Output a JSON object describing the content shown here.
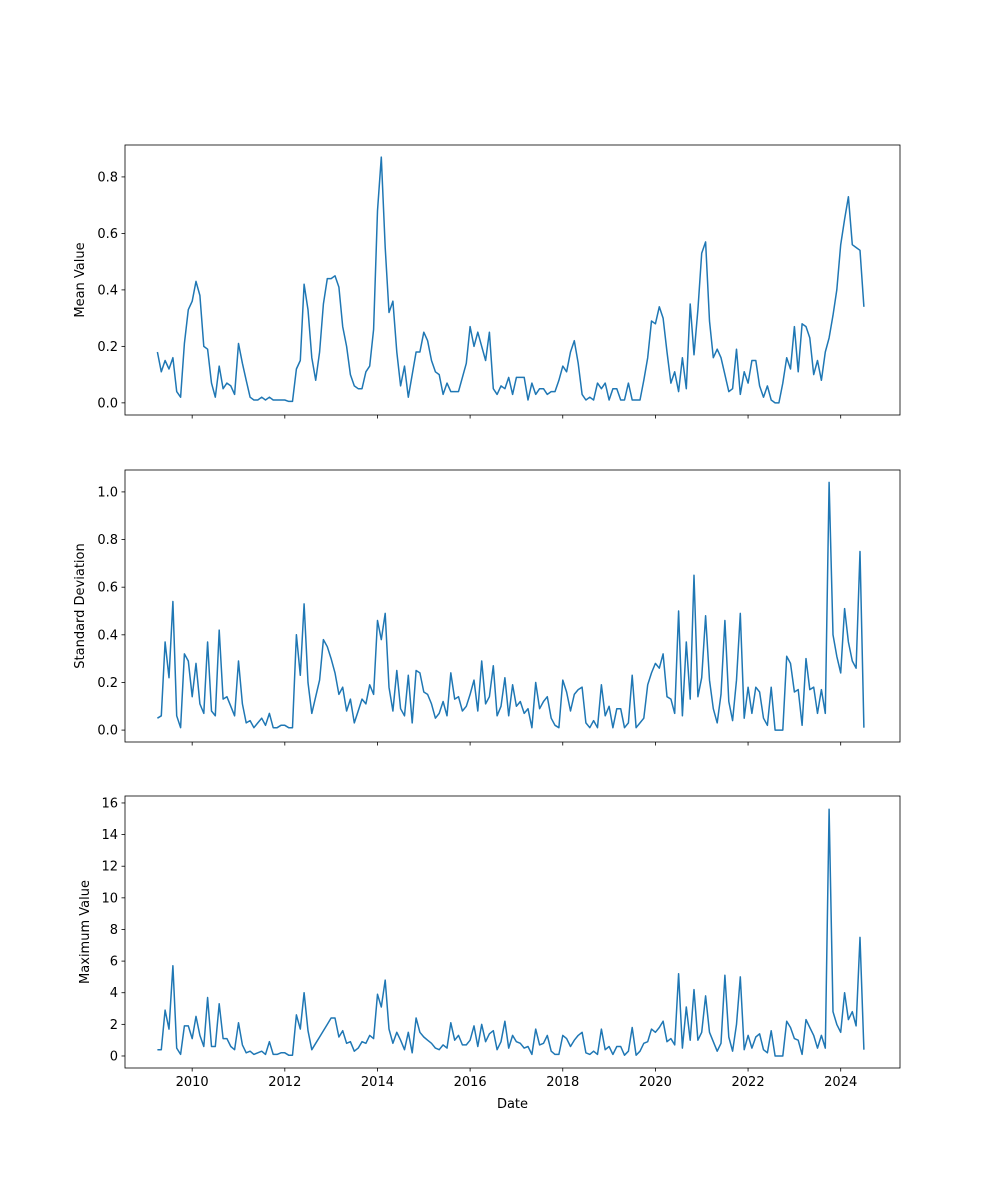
{
  "chart_data": {
    "type": "line",
    "shared_xlabel": "Date",
    "x_start": {
      "year": 2009,
      "month": 4
    },
    "x_frequency": "monthly",
    "xlim": [
      2008.55,
      2025.28
    ],
    "x_ticks": [
      2010,
      2012,
      2014,
      2016,
      2018,
      2020,
      2022,
      2024
    ],
    "line_color": "#1f77b4",
    "panels": [
      {
        "ylabel": "Mean Value",
        "ylim": [
          -0.043,
          0.913
        ],
        "y_ticks": [
          "0.0",
          "0.2",
          "0.4",
          "0.6",
          "0.8"
        ],
        "values": [
          0.18,
          0.11,
          0.15,
          0.12,
          0.16,
          0.04,
          0.02,
          0.21,
          0.33,
          0.36,
          0.43,
          0.38,
          0.2,
          0.19,
          0.07,
          0.02,
          0.13,
          0.05,
          0.07,
          0.06,
          0.03,
          0.21,
          0.14,
          0.08,
          0.02,
          0.01,
          0.01,
          0.02,
          0.01,
          0.02,
          0.01,
          0.01,
          0.01,
          0.01,
          0.005,
          0.005,
          0.12,
          0.15,
          0.42,
          0.33,
          0.16,
          0.08,
          0.18,
          0.35,
          0.44,
          0.44,
          0.45,
          0.41,
          0.27,
          0.2,
          0.1,
          0.06,
          0.05,
          0.05,
          0.11,
          0.13,
          0.26,
          0.68,
          0.87,
          0.55,
          0.32,
          0.36,
          0.18,
          0.06,
          0.13,
          0.02,
          0.1,
          0.18,
          0.18,
          0.25,
          0.22,
          0.15,
          0.11,
          0.1,
          0.03,
          0.07,
          0.04,
          0.04,
          0.04,
          0.09,
          0.14,
          0.27,
          0.2,
          0.25,
          0.2,
          0.15,
          0.25,
          0.05,
          0.03,
          0.06,
          0.05,
          0.09,
          0.03,
          0.09,
          0.09,
          0.09,
          0.01,
          0.07,
          0.03,
          0.05,
          0.05,
          0.03,
          0.04,
          0.04,
          0.08,
          0.13,
          0.11,
          0.18,
          0.22,
          0.14,
          0.03,
          0.01,
          0.02,
          0.01,
          0.07,
          0.05,
          0.07,
          0.01,
          0.05,
          0.05,
          0.01,
          0.01,
          0.07,
          0.01,
          0.01,
          0.01,
          0.08,
          0.16,
          0.29,
          0.28,
          0.34,
          0.3,
          0.18,
          0.07,
          0.11,
          0.04,
          0.16,
          0.05,
          0.35,
          0.17,
          0.33,
          0.53,
          0.57,
          0.29,
          0.16,
          0.19,
          0.16,
          0.1,
          0.04,
          0.05,
          0.19,
          0.03,
          0.11,
          0.07,
          0.15,
          0.15,
          0.06,
          0.02,
          0.06,
          0.01,
          0.0,
          0.0,
          0.07,
          0.16,
          0.12,
          0.27,
          0.11,
          0.28,
          0.27,
          0.23,
          0.1,
          0.15,
          0.08,
          0.18,
          0.23,
          0.31,
          0.4,
          0.56,
          0.65,
          0.73,
          0.56,
          0.55,
          0.54,
          0.34
        ]
      },
      {
        "ylabel": "Standard Deviation",
        "ylim": [
          -0.05,
          1.092
        ],
        "y_ticks": [
          "0.0",
          "0.2",
          "0.4",
          "0.6",
          "0.8",
          "1.0"
        ],
        "values": [
          0.05,
          0.06,
          0.37,
          0.22,
          0.54,
          0.06,
          0.01,
          0.32,
          0.29,
          0.14,
          0.28,
          0.11,
          0.07,
          0.37,
          0.08,
          0.06,
          0.42,
          0.13,
          0.14,
          0.1,
          0.06,
          0.29,
          0.11,
          0.03,
          0.04,
          0.01,
          0.03,
          0.05,
          0.02,
          0.07,
          0.01,
          0.01,
          0.02,
          0.02,
          0.01,
          0.01,
          0.4,
          0.23,
          0.53,
          0.2,
          0.07,
          0.14,
          0.21,
          0.38,
          0.35,
          0.3,
          0.24,
          0.15,
          0.18,
          0.08,
          0.13,
          0.03,
          0.08,
          0.13,
          0.11,
          0.19,
          0.15,
          0.46,
          0.38,
          0.49,
          0.18,
          0.08,
          0.25,
          0.09,
          0.06,
          0.23,
          0.03,
          0.25,
          0.24,
          0.16,
          0.15,
          0.11,
          0.05,
          0.07,
          0.12,
          0.06,
          0.24,
          0.13,
          0.14,
          0.08,
          0.1,
          0.15,
          0.21,
          0.08,
          0.29,
          0.11,
          0.14,
          0.27,
          0.06,
          0.1,
          0.22,
          0.06,
          0.19,
          0.1,
          0.12,
          0.07,
          0.09,
          0.01,
          0.2,
          0.09,
          0.12,
          0.14,
          0.05,
          0.02,
          0.01,
          0.21,
          0.16,
          0.08,
          0.15,
          0.17,
          0.18,
          0.03,
          0.01,
          0.04,
          0.01,
          0.19,
          0.06,
          0.1,
          0.01,
          0.09,
          0.09,
          0.01,
          0.03,
          0.23,
          0.01,
          0.03,
          0.05,
          0.19,
          0.24,
          0.28,
          0.26,
          0.32,
          0.14,
          0.13,
          0.07,
          0.5,
          0.06,
          0.37,
          0.13,
          0.65,
          0.14,
          0.22,
          0.48,
          0.21,
          0.09,
          0.03,
          0.15,
          0.46,
          0.12,
          0.04,
          0.21,
          0.49,
          0.05,
          0.18,
          0.07,
          0.18,
          0.16,
          0.05,
          0.02,
          0.18,
          0.0,
          0.0,
          0.0,
          0.31,
          0.28,
          0.16,
          0.17,
          0.02,
          0.3,
          0.17,
          0.18,
          0.07,
          0.17,
          0.07,
          1.04,
          0.4,
          0.31,
          0.24,
          0.51,
          0.37,
          0.29,
          0.26,
          0.75,
          0.01
        ]
      },
      {
        "ylabel": "Maximum Value",
        "ylim": [
          -0.76,
          16.44
        ],
        "y_ticks": [
          "0",
          "2",
          "4",
          "6",
          "8",
          "10",
          "12",
          "14",
          "16"
        ],
        "values": [
          0.4,
          0.4,
          2.9,
          1.7,
          5.7,
          0.5,
          0.1,
          1.9,
          1.9,
          1.1,
          2.5,
          1.3,
          0.6,
          3.7,
          0.6,
          0.6,
          3.3,
          1.1,
          1.1,
          0.6,
          0.4,
          2.1,
          0.7,
          0.2,
          0.3,
          0.1,
          0.2,
          0.3,
          0.1,
          0.9,
          0.1,
          0.1,
          0.2,
          0.2,
          0.05,
          0.05,
          2.6,
          1.7,
          4.0,
          1.6,
          0.4,
          0.8,
          1.2,
          1.6,
          2.0,
          2.4,
          2.4,
          1.2,
          1.6,
          0.8,
          0.9,
          0.3,
          0.5,
          0.9,
          0.8,
          1.3,
          1.1,
          3.9,
          3.1,
          4.8,
          1.7,
          0.8,
          1.5,
          1.0,
          0.4,
          1.5,
          0.2,
          2.4,
          1.5,
          1.2,
          1.0,
          0.8,
          0.5,
          0.4,
          0.7,
          0.5,
          2.1,
          1.0,
          1.3,
          0.7,
          0.7,
          1.0,
          1.9,
          0.6,
          2.0,
          0.9,
          1.4,
          1.6,
          0.4,
          0.9,
          2.2,
          0.5,
          1.3,
          0.9,
          0.8,
          0.5,
          0.6,
          0.1,
          1.7,
          0.7,
          0.8,
          1.3,
          0.3,
          0.1,
          0.1,
          1.3,
          1.1,
          0.6,
          1.0,
          1.3,
          1.5,
          0.2,
          0.1,
          0.3,
          0.1,
          1.7,
          0.4,
          0.6,
          0.1,
          0.6,
          0.6,
          0.05,
          0.3,
          1.8,
          0.05,
          0.3,
          0.8,
          0.9,
          1.7,
          1.5,
          1.8,
          2.2,
          0.9,
          1.1,
          0.7,
          5.2,
          0.5,
          3.1,
          1.0,
          4.2,
          1.0,
          1.5,
          3.8,
          1.5,
          0.9,
          0.3,
          0.8,
          5.1,
          1.2,
          0.3,
          2.0,
          5.0,
          0.4,
          1.3,
          0.5,
          1.2,
          1.4,
          0.4,
          0.2,
          1.6,
          0.0,
          0.0,
          0.0,
          2.2,
          1.8,
          1.1,
          1.0,
          0.1,
          2.3,
          1.8,
          1.3,
          0.5,
          1.3,
          0.5,
          15.6,
          2.8,
          2.0,
          1.5,
          4.0,
          2.3,
          2.8,
          1.9,
          7.5,
          0.4
        ]
      }
    ]
  }
}
